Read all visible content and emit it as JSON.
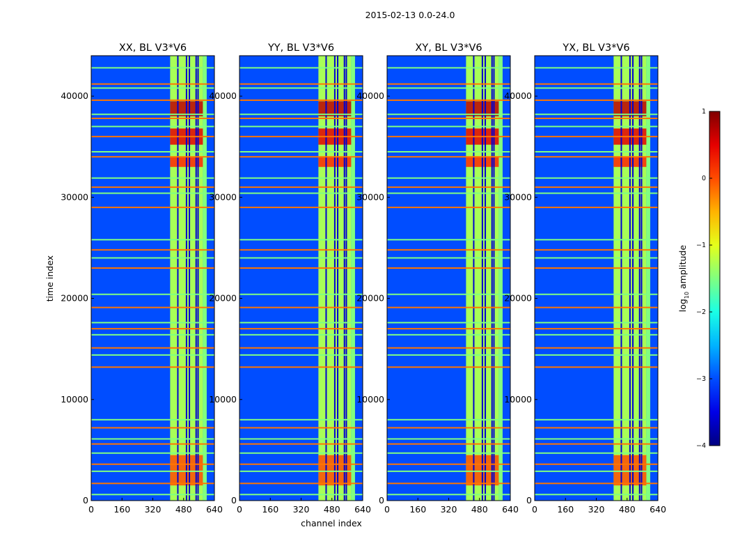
{
  "figure_title": "2015-02-13 0.0-24.0",
  "chart_data": {
    "type": "heatmap",
    "title": "2015-02-13 0.0-24.0",
    "xlabel": "channel index",
    "ylabel": "time index",
    "xlim": [
      0,
      640
    ],
    "ylim": [
      0,
      44000
    ],
    "x_ticks": [
      0,
      160,
      320,
      480,
      640
    ],
    "y_ticks": [
      0,
      10000,
      20000,
      30000,
      40000
    ],
    "colormap": "jet",
    "colorbar": {
      "label": "log10 amplitude",
      "label_prefix": "log",
      "label_sub": "10",
      "label_suffix": " amplitude",
      "range": [
        -4,
        1
      ],
      "ticks": [
        {
          "value": -4,
          "text": "−4"
        },
        {
          "value": -3,
          "text": "−3"
        },
        {
          "value": -2,
          "text": "−2"
        },
        {
          "value": -1,
          "text": "−1"
        },
        {
          "value": 0,
          "text": "0"
        },
        {
          "value": 1,
          "text": "1"
        }
      ]
    },
    "panels": [
      {
        "title": "XX, BL V3*V6",
        "polarization": "XX",
        "baseline": "V3*V6"
      },
      {
        "title": "YY, BL V3*V6",
        "polarization": "YY",
        "baseline": "V3*V6"
      },
      {
        "title": "XY, BL V3*V6",
        "polarization": "XY",
        "baseline": "V3*V6"
      },
      {
        "title": "YX, BL V3*V6",
        "polarization": "YX",
        "baseline": "V3*V6"
      }
    ],
    "background_level": -3,
    "rfi_bands": [
      {
        "ch_start": 410,
        "ch_end": 580,
        "level": -1.3
      },
      {
        "ch_start": 580,
        "ch_end": 600,
        "level": -1.5
      }
    ],
    "rfi_channel_lines": [
      450,
      495,
      510,
      545,
      555
    ],
    "strong_time_ranges": [
      {
        "t_start": 38000,
        "t_end": 39500,
        "level": 0.7
      },
      {
        "t_start": 35200,
        "t_end": 36800,
        "level": 0.5
      },
      {
        "t_start": 33000,
        "t_end": 34000,
        "level": 0.2
      },
      {
        "t_start": 1500,
        "t_end": 4500,
        "level": 0.0
      }
    ],
    "flagged_time_lines": [
      600,
      1700,
      2900,
      3600,
      4700,
      5600,
      6100,
      7200,
      8000,
      13200,
      14400,
      15100,
      16400,
      17000,
      17600,
      19100,
      20400,
      23000,
      24000,
      24800,
      25800,
      29000,
      30400,
      31000,
      31900,
      34000,
      34500,
      36000,
      37000,
      37800,
      38200,
      39600,
      40800,
      41200,
      42800
    ]
  }
}
